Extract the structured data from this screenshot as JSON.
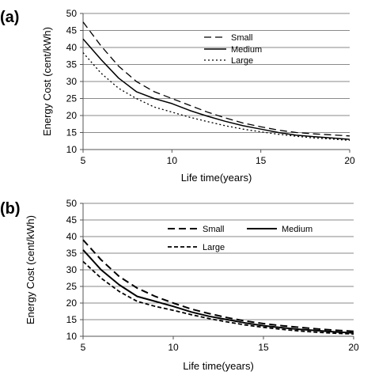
{
  "chart_data": [
    {
      "panel_label": "(a)",
      "type": "line",
      "xlabel": "Life time(years)",
      "ylabel": "Energy Cost (cent/kWh)",
      "xlim": [
        5,
        20
      ],
      "ylim": [
        10,
        50
      ],
      "xticks": [
        5,
        10,
        15,
        20
      ],
      "yticks": [
        10,
        15,
        20,
        25,
        30,
        35,
        40,
        45,
        50
      ],
      "grid": "horizontal",
      "legend_position": "top-right",
      "legend_layout": "vertical",
      "series": [
        {
          "name": "Small",
          "style": "dashed",
          "x": [
            5,
            6,
            7,
            8,
            9,
            10,
            11,
            12,
            13,
            14,
            15,
            16,
            17,
            18,
            19,
            20
          ],
          "y": [
            47.5,
            40.5,
            34.5,
            30.0,
            27.0,
            25.0,
            23.0,
            21.0,
            19.3,
            17.8,
            16.7,
            15.7,
            15.0,
            14.6,
            14.3,
            14.0
          ]
        },
        {
          "name": "Medium",
          "style": "solid",
          "x": [
            5,
            6,
            7,
            8,
            9,
            10,
            11,
            12,
            13,
            14,
            15,
            16,
            17,
            18,
            19,
            20
          ],
          "y": [
            42.5,
            36.5,
            31.0,
            27.0,
            25.0,
            23.5,
            21.5,
            19.8,
            18.3,
            17.0,
            16.0,
            15.0,
            14.2,
            13.8,
            13.4,
            13.0
          ]
        },
        {
          "name": "Large",
          "style": "dotted",
          "x": [
            5,
            6,
            7,
            8,
            9,
            10,
            11,
            12,
            13,
            14,
            15,
            16,
            17,
            18,
            19,
            20
          ],
          "y": [
            38.5,
            32.5,
            28.0,
            25.0,
            22.5,
            21.0,
            19.5,
            18.2,
            17.0,
            16.0,
            15.2,
            14.5,
            13.9,
            13.4,
            13.1,
            12.7
          ]
        }
      ]
    },
    {
      "panel_label": "(b)",
      "type": "line",
      "xlabel": "Life time(years)",
      "ylabel": "Energy Cost (cent/kWh)",
      "xlim": [
        5,
        20
      ],
      "ylim": [
        10,
        50
      ],
      "xticks": [
        5,
        10,
        15,
        20
      ],
      "yticks": [
        10,
        15,
        20,
        25,
        30,
        35,
        40,
        45,
        50
      ],
      "grid": "horizontal",
      "legend_position": "top",
      "legend_layout": "two-row",
      "series": [
        {
          "name": "Small",
          "style": "dashed",
          "x": [
            5,
            6,
            7,
            8,
            9,
            10,
            11,
            12,
            13,
            14,
            15,
            16,
            17,
            18,
            19,
            20
          ],
          "y": [
            39.0,
            33.0,
            28.0,
            24.5,
            22.0,
            20.0,
            18.2,
            16.8,
            15.6,
            14.6,
            13.8,
            13.2,
            12.7,
            12.2,
            11.8,
            11.5
          ]
        },
        {
          "name": "Medium",
          "style": "solid",
          "x": [
            5,
            6,
            7,
            8,
            9,
            10,
            11,
            12,
            13,
            14,
            15,
            16,
            17,
            18,
            19,
            20
          ],
          "y": [
            36.0,
            30.0,
            25.5,
            22.0,
            20.5,
            19.0,
            17.3,
            16.0,
            15.0,
            14.0,
            13.2,
            12.6,
            12.1,
            11.7,
            11.3,
            11.0
          ]
        },
        {
          "name": "Large",
          "style": "short-dashed",
          "x": [
            5,
            6,
            7,
            8,
            9,
            10,
            11,
            12,
            13,
            14,
            15,
            16,
            17,
            18,
            19,
            20
          ],
          "y": [
            32.5,
            27.5,
            23.5,
            20.5,
            19.0,
            17.8,
            16.5,
            15.3,
            14.3,
            13.4,
            12.7,
            12.1,
            11.6,
            11.2,
            10.9,
            10.7
          ]
        }
      ]
    }
  ]
}
